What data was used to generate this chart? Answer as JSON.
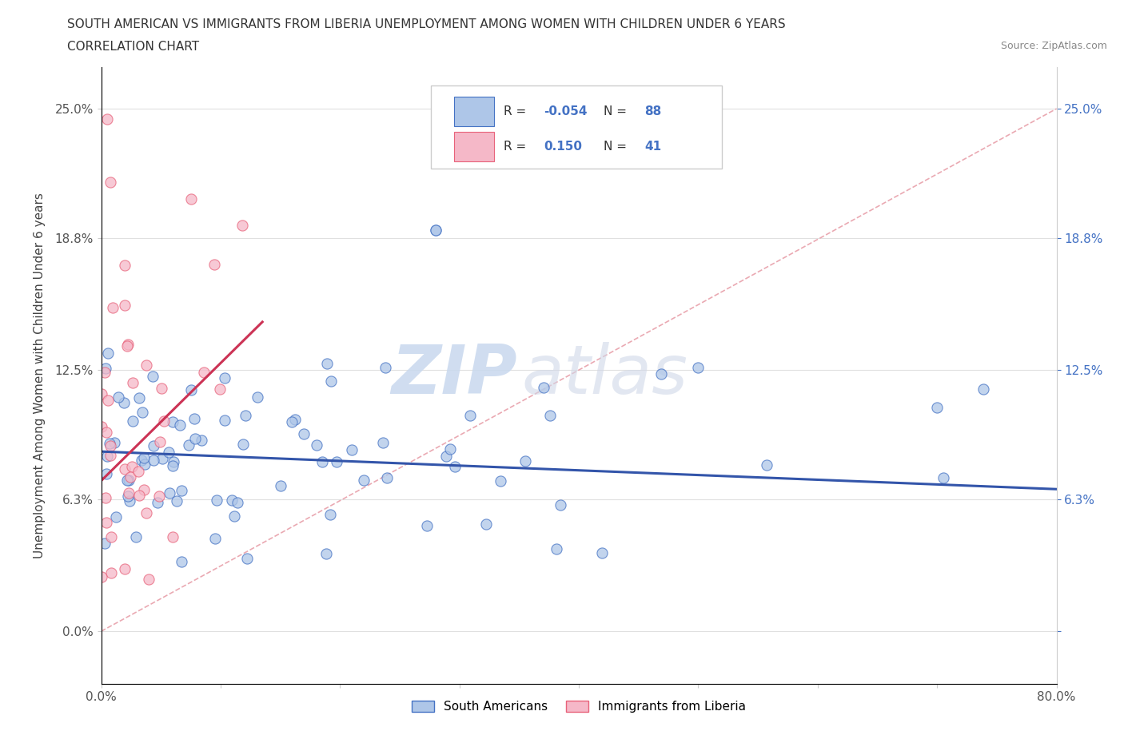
{
  "title_line1": "SOUTH AMERICAN VS IMMIGRANTS FROM LIBERIA UNEMPLOYMENT AMONG WOMEN WITH CHILDREN UNDER 6 YEARS",
  "title_line2": "CORRELATION CHART",
  "source": "Source: ZipAtlas.com",
  "ylabel": "Unemployment Among Women with Children Under 6 years",
  "xmin": 0.0,
  "xmax": 0.8,
  "ymin": -0.025,
  "ymax": 0.27,
  "yticks": [
    0.0,
    0.063,
    0.125,
    0.188,
    0.25
  ],
  "ytick_labels": [
    "0.0%",
    "6.3%",
    "12.5%",
    "18.8%",
    "25.0%"
  ],
  "xticks": [
    0.0,
    0.1,
    0.2,
    0.3,
    0.4,
    0.5,
    0.6,
    0.7,
    0.8
  ],
  "xtick_labels": [
    "0.0%",
    "",
    "",
    "",
    "",
    "",
    "",
    "",
    "80.0%"
  ],
  "right_labels": [
    "",
    "6.3%",
    "12.5%",
    "18.8%",
    "25.0%"
  ],
  "blue_R": -0.054,
  "blue_N": 88,
  "pink_R": 0.15,
  "pink_N": 41,
  "blue_color": "#aec6e8",
  "pink_color": "#f5b8c8",
  "blue_edge_color": "#4472c4",
  "pink_edge_color": "#e8627a",
  "blue_line_color": "#3355aa",
  "pink_line_color": "#cc3355",
  "diag_line_color": "#e8a0aa",
  "legend_blue_label": "South Americans",
  "legend_pink_label": "Immigrants from Liberia",
  "watermark_zip": "ZIP",
  "watermark_atlas": "atlas",
  "grid_color": "#e0e0e0",
  "blue_trend_x0": 0.0,
  "blue_trend_x1": 0.8,
  "blue_trend_y0": 0.086,
  "blue_trend_y1": 0.068,
  "pink_trend_x0": 0.0,
  "pink_trend_x1": 0.135,
  "pink_trend_y0": 0.072,
  "pink_trend_y1": 0.148
}
